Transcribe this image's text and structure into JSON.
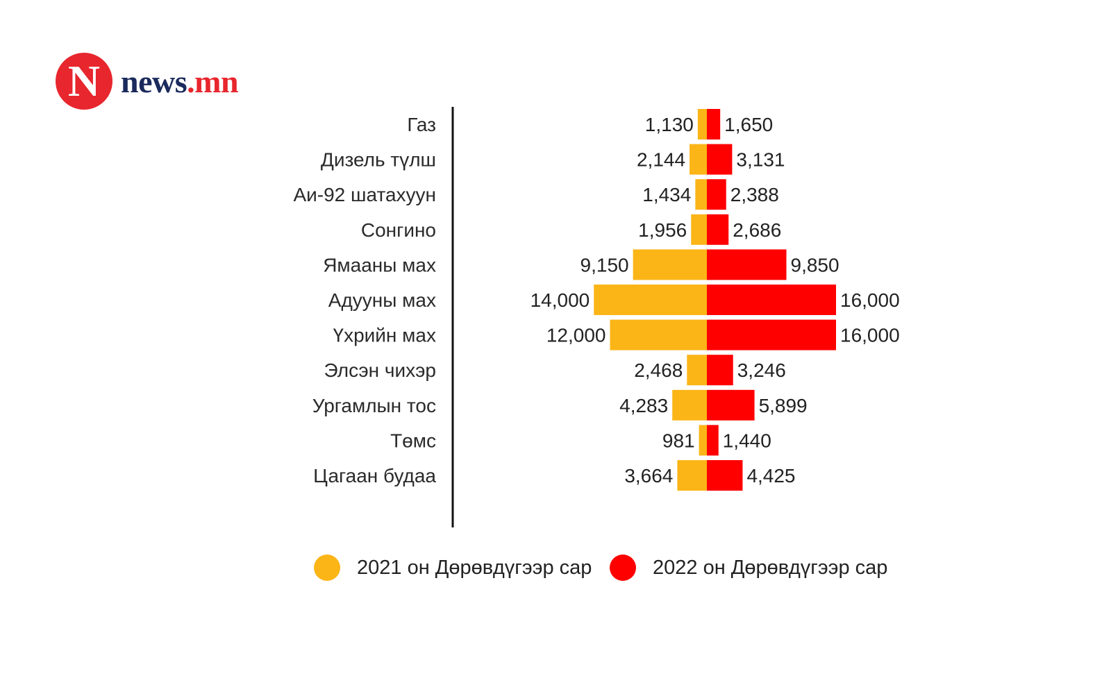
{
  "logo": {
    "badge_letter": "N",
    "text_news": "news",
    "text_dot": ".",
    "text_mn": "mn"
  },
  "colors": {
    "series_2021": "#fbb517",
    "series_2022": "#fe0000",
    "logo_red": "#e8262d",
    "logo_navy": "#1b2a5c"
  },
  "chart_data": {
    "type": "bar",
    "orientation": "horizontal-diverging",
    "categories": [
      "Газ",
      "Дизель түлш",
      "Аи-92 шатахуун",
      "Сонгино",
      "Ямааны мах",
      "Адууны мах",
      "Үхрийн мах",
      "Элсэн чихэр",
      "Ургамлын тос",
      "Төмс",
      "Цагаан будаа"
    ],
    "series": [
      {
        "name": "2021 он Дөрөвдүгээр сар",
        "color": "#fbb517",
        "values": [
          1130,
          2144,
          1434,
          1956,
          9150,
          14000,
          12000,
          2468,
          4283,
          981,
          3664
        ],
        "labels": [
          "1,130",
          "2,144",
          "1,434",
          "1,956",
          "9,150",
          "14,000",
          "12,000",
          "2,468",
          "4,283",
          "981",
          "3,664"
        ]
      },
      {
        "name": "2022 он Дөрөвдүгээр сар",
        "color": "#fe0000",
        "values": [
          1650,
          3131,
          2388,
          2686,
          9850,
          16000,
          16000,
          3246,
          5899,
          1440,
          4425
        ],
        "labels": [
          "1,650",
          "3,131",
          "2,388",
          "2,686",
          "9,850",
          "16,000",
          "16,000",
          "3,246",
          "5,899",
          "1,440",
          "4,425"
        ]
      }
    ],
    "legend_position": "bottom-center",
    "grid": false
  }
}
